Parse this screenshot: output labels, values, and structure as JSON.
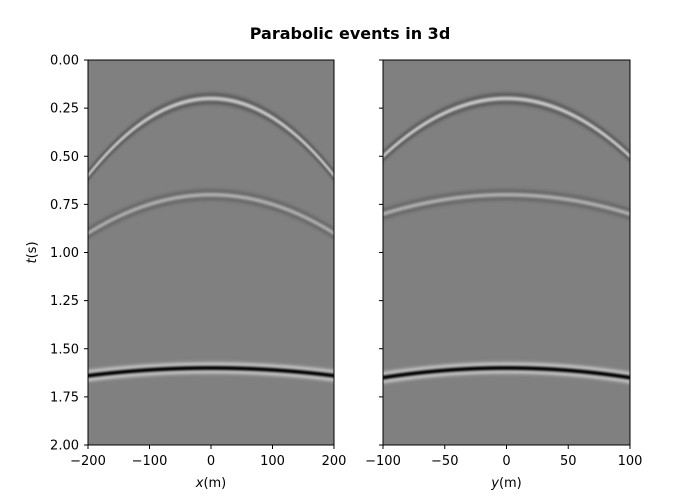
{
  "figure": {
    "title": "Parabolic events in 3d"
  },
  "colors": {
    "background": "#808080",
    "wavelet_positive": "#000000",
    "wavelet_negative": "#ffffff",
    "frame": "#000000"
  },
  "chart_data": [
    {
      "type": "heatmap",
      "colormap": "gray",
      "title": "",
      "xlabel_symbol": "x",
      "xlabel_unit": "(m)",
      "ylabel_symbol": "t",
      "ylabel_unit": "(s)",
      "xlim": [
        -200,
        200
      ],
      "ylim": [
        2.0,
        0.0
      ],
      "y_inverted": true,
      "xticks": [
        -200,
        -100,
        0,
        100,
        200
      ],
      "yticks": [
        0.0,
        0.25,
        0.5,
        0.75,
        1.0,
        1.25,
        1.5,
        1.75,
        2.0
      ],
      "xtick_labels": [
        "−200",
        "−100",
        "0",
        "100",
        "200"
      ],
      "ytick_labels": [
        "0.00",
        "0.25",
        "0.50",
        "0.75",
        "1.00",
        "1.25",
        "1.50",
        "1.75",
        "2.00"
      ],
      "events": [
        {
          "t0": 0.2,
          "t_at_edge": 0.6,
          "amplitude": -0.55
        },
        {
          "t0": 0.7,
          "t_at_edge": 0.9,
          "amplitude": -0.35
        },
        {
          "t0": 1.6,
          "t_at_edge": 1.64,
          "amplitude": 1.0
        }
      ]
    },
    {
      "type": "heatmap",
      "colormap": "gray",
      "title": "",
      "xlabel_symbol": "y",
      "xlabel_unit": "(m)",
      "ylabel_symbol": "",
      "ylabel_unit": "",
      "xlim": [
        -100,
        100
      ],
      "ylim": [
        2.0,
        0.0
      ],
      "y_inverted": true,
      "shared_y": true,
      "xticks": [
        -100,
        -50,
        0,
        50,
        100
      ],
      "yticks": [
        0.0,
        0.25,
        0.5,
        0.75,
        1.0,
        1.25,
        1.5,
        1.75,
        2.0
      ],
      "xtick_labels": [
        "−100",
        "−50",
        "0",
        "50",
        "100"
      ],
      "ytick_labels": [],
      "events": [
        {
          "t0": 0.2,
          "t_at_edge": 0.5,
          "amplitude": -0.55
        },
        {
          "t0": 0.7,
          "t_at_edge": 0.8,
          "amplitude": -0.35
        },
        {
          "t0": 1.6,
          "t_at_edge": 1.65,
          "amplitude": 1.0
        }
      ]
    }
  ]
}
